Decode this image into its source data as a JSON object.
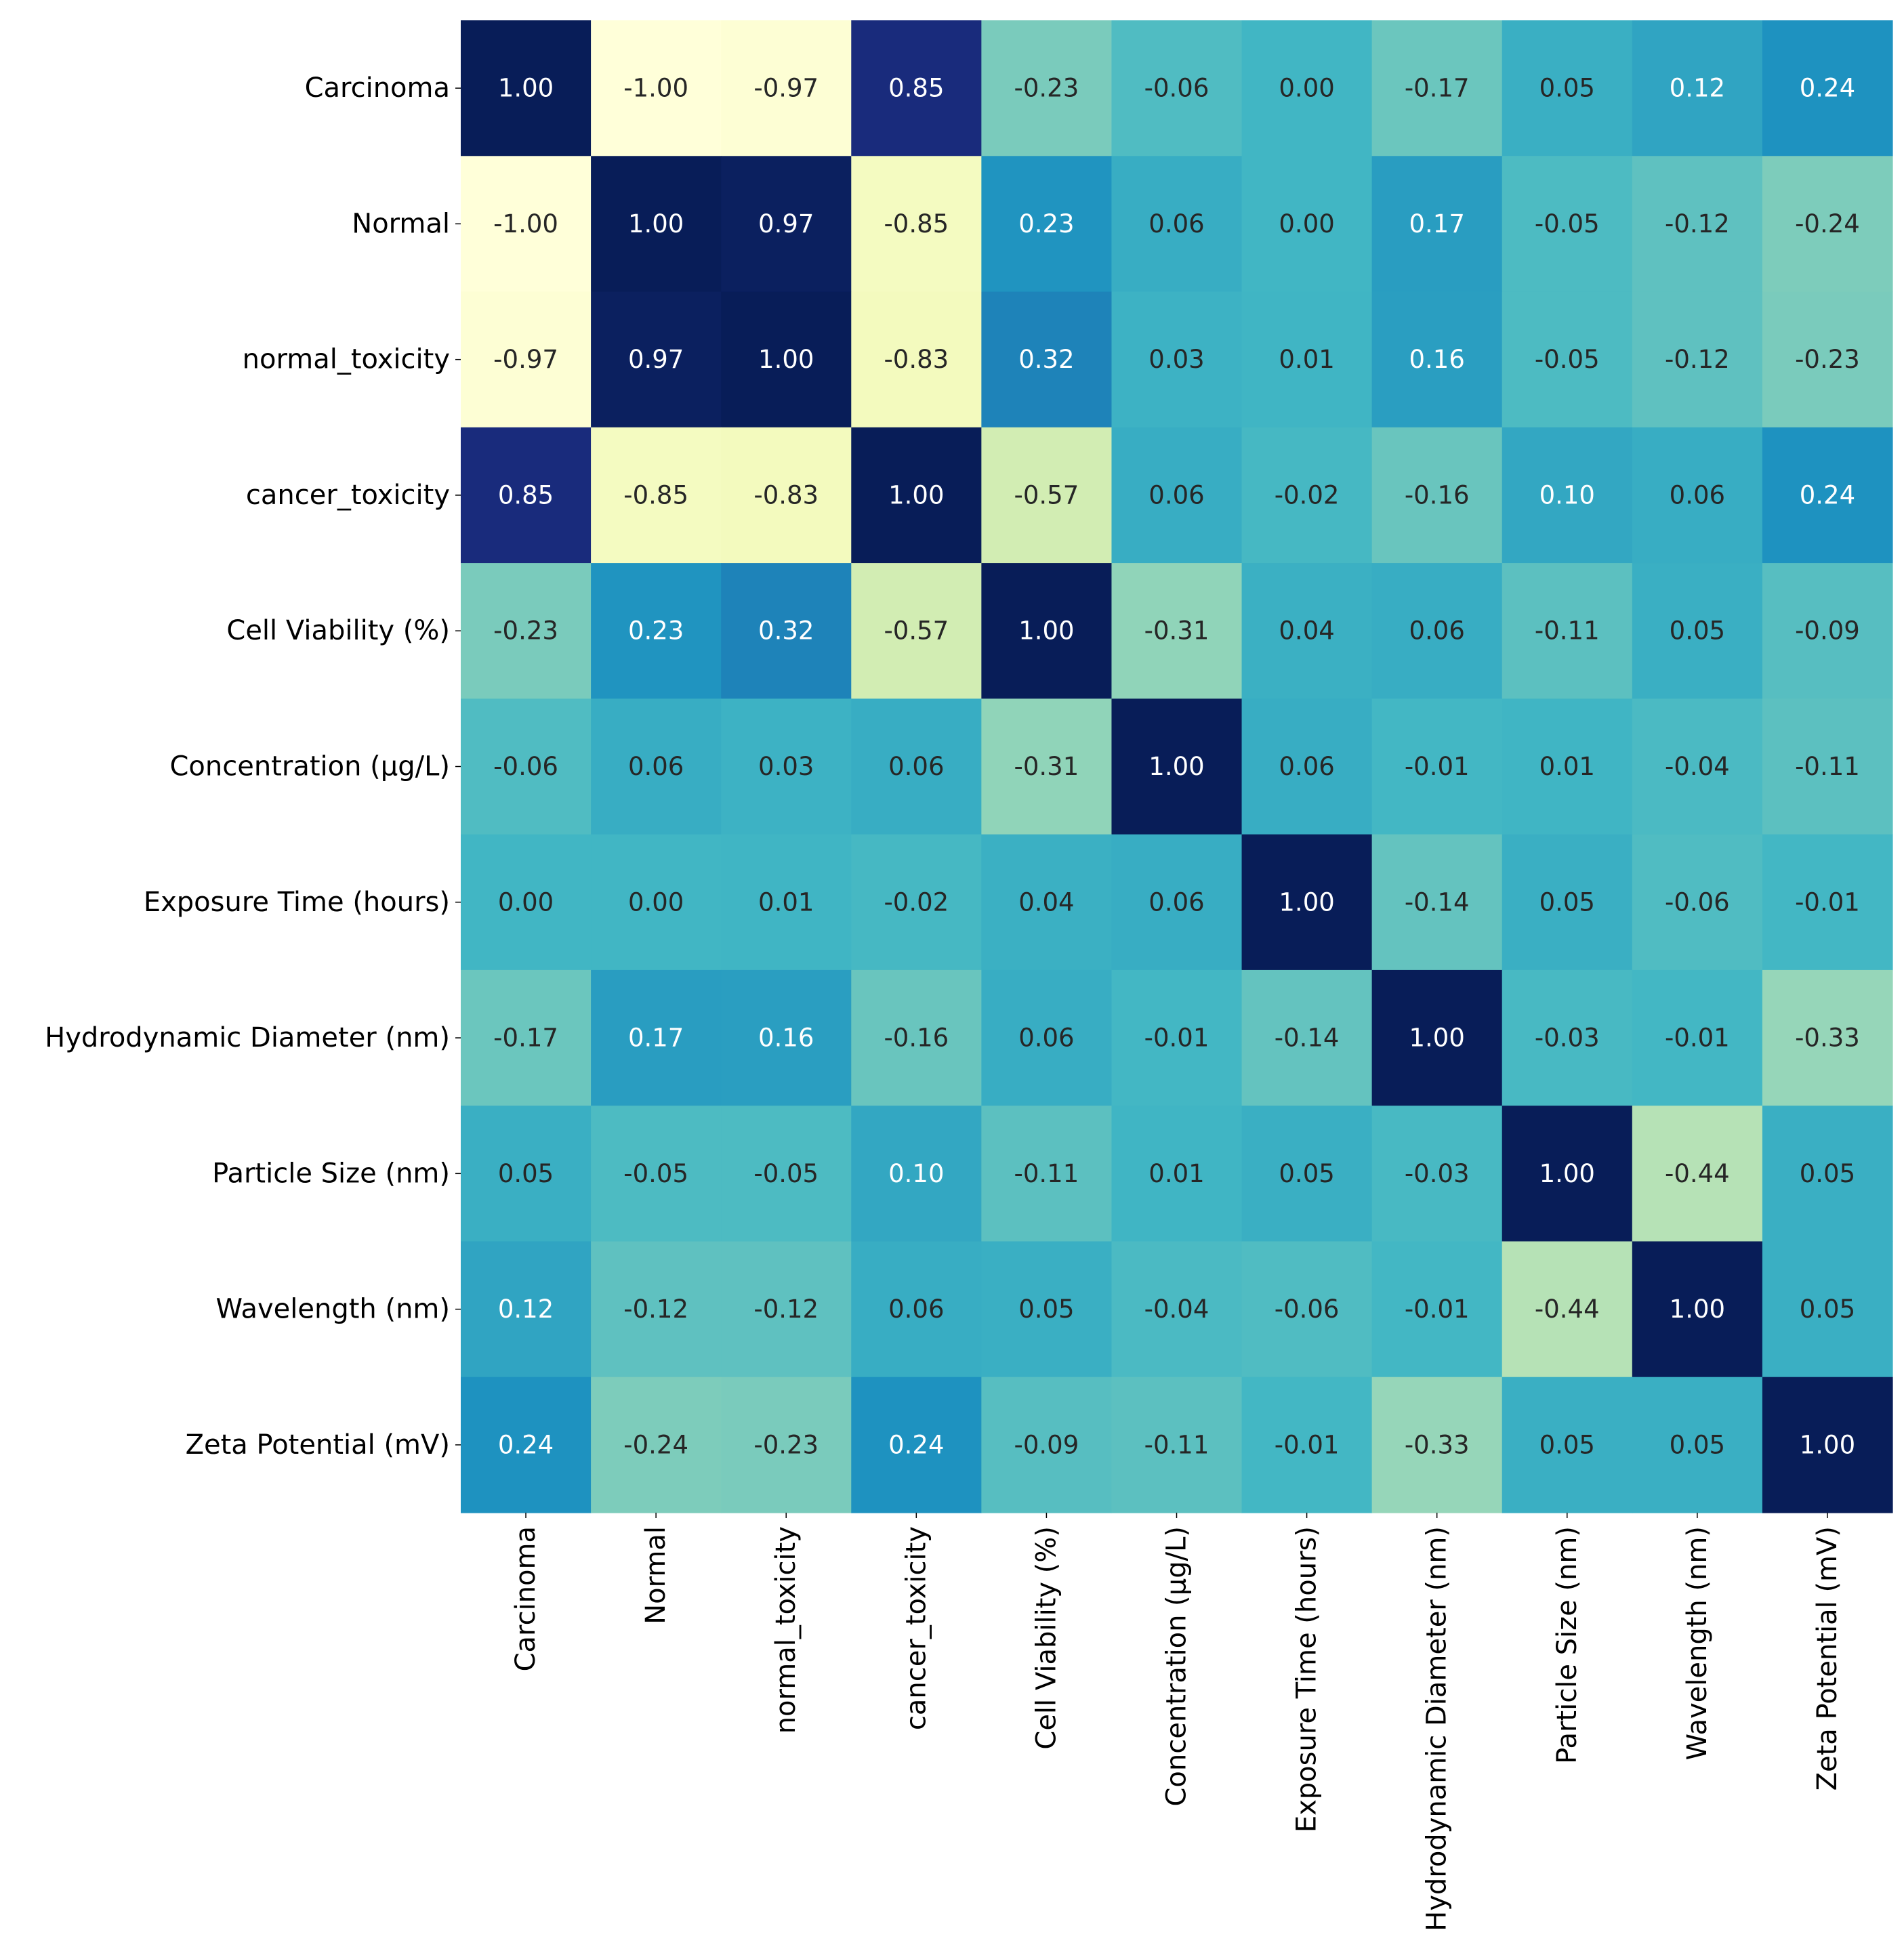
{
  "chart_data": {
    "type": "heatmap",
    "title": "",
    "colormap": "YlGnBu",
    "vmin": -1.0,
    "vmax": 1.0,
    "colorbar": false,
    "value_format": "2dp",
    "row_labels": [
      "Carcinoma",
      "Normal",
      "normal_toxicity",
      "cancer_toxicity",
      "Cell Viability (%)",
      "Concentration (µg/L)",
      "Exposure Time (hours)",
      "Hydrodynamic Diameter (nm)",
      "Particle Size (nm)",
      "Wavelength (nm)",
      "Zeta Potential (mV)"
    ],
    "col_labels": [
      "Carcinoma",
      "Normal",
      "normal_toxicity",
      "cancer_toxicity",
      "Cell Viability (%)",
      "Concentration (µg/L)",
      "Exposure Time (hours)",
      "Hydrodynamic Diameter (nm)",
      "Particle Size (nm)",
      "Wavelength (nm)",
      "Zeta Potential (mV)"
    ],
    "matrix": [
      [
        1.0,
        -1.0,
        -0.97,
        0.85,
        -0.23,
        -0.06,
        -0.0,
        -0.17,
        0.05,
        0.12,
        0.24
      ],
      [
        -1.0,
        1.0,
        0.97,
        -0.85,
        0.23,
        0.06,
        0.0,
        0.17,
        -0.05,
        -0.12,
        -0.24
      ],
      [
        -0.97,
        0.97,
        1.0,
        -0.83,
        0.32,
        0.03,
        0.01,
        0.16,
        -0.05,
        -0.12,
        -0.23
      ],
      [
        0.85,
        -0.85,
        -0.83,
        1.0,
        -0.57,
        0.06,
        -0.02,
        -0.16,
        0.1,
        0.06,
        0.24
      ],
      [
        -0.23,
        0.23,
        0.32,
        -0.57,
        1.0,
        -0.31,
        0.04,
        0.06,
        -0.11,
        0.05,
        -0.09
      ],
      [
        -0.06,
        0.06,
        0.03,
        0.06,
        -0.31,
        1.0,
        0.06,
        -0.01,
        0.01,
        -0.04,
        -0.11
      ],
      [
        -0.0,
        0.0,
        0.01,
        -0.02,
        0.04,
        0.06,
        1.0,
        -0.14,
        0.05,
        -0.06,
        -0.01
      ],
      [
        -0.17,
        0.17,
        0.16,
        -0.16,
        0.06,
        -0.01,
        -0.14,
        1.0,
        -0.03,
        -0.01,
        -0.33
      ],
      [
        0.05,
        -0.05,
        -0.05,
        0.1,
        -0.11,
        0.01,
        0.05,
        -0.03,
        1.0,
        -0.44,
        0.05
      ],
      [
        0.12,
        -0.12,
        -0.12,
        0.06,
        0.05,
        -0.04,
        -0.06,
        -0.01,
        -0.44,
        1.0,
        0.05
      ],
      [
        0.24,
        -0.24,
        -0.23,
        0.24,
        -0.09,
        -0.11,
        -0.01,
        -0.33,
        0.05,
        0.05,
        1.0
      ]
    ]
  }
}
